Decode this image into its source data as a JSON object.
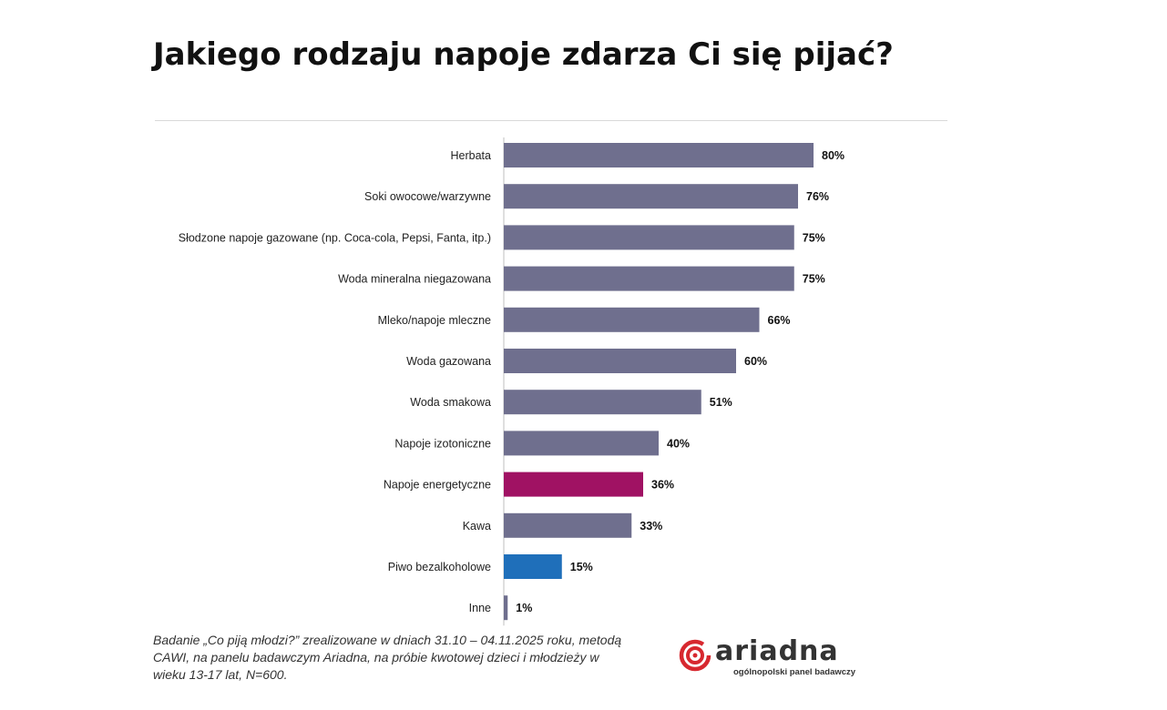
{
  "page": {
    "title": "Jakiego rodzaju napoje zdarza Ci się pijać?",
    "footnote": "Badanie „Co piją młodzi?” zrealizowane w dniach 31.10 – 04.11.2025 roku, metodą CAWI, na panelu badawczym Ariadna, na próbie kwotowej dzieci i młodzieży w wieku 13-17 lat, N=600.",
    "logo": {
      "name": "ariadna",
      "tagline": "ogólnopolski panel badawczy",
      "icon": "ariadna-spiral-icon",
      "color": "#d7282f"
    }
  },
  "chart_data": {
    "type": "bar",
    "orientation": "horizontal",
    "title": "Jakiego rodzaju napoje zdarza Ci się pijać?",
    "categories": [
      "Herbata",
      "Soki owocowe/warzywne",
      "Słodzone napoje gazowane (np. Coca-cola, Pepsi, Fanta, itp.)",
      "Woda mineralna niegazowana",
      "Mleko/napoje mleczne",
      "Woda gazowana",
      "Woda smakowa",
      "Napoje izotoniczne",
      "Napoje energetyczne",
      "Kawa",
      "Piwo bezalkoholowe",
      "Inne"
    ],
    "values": [
      80,
      76,
      75,
      75,
      66,
      60,
      51,
      40,
      36,
      33,
      15,
      1
    ],
    "value_labels": [
      "80%",
      "76%",
      "75%",
      "75%",
      "66%",
      "60%",
      "51%",
      "40%",
      "36%",
      "33%",
      "15%",
      "1%"
    ],
    "colors": [
      "#6f6f8e",
      "#6f6f8e",
      "#6f6f8e",
      "#6f6f8e",
      "#6f6f8e",
      "#6f6f8e",
      "#6f6f8e",
      "#6f6f8e",
      "#a01263",
      "#6f6f8e",
      "#1f6fba",
      "#6f6f8e"
    ],
    "xlim": [
      0,
      80
    ],
    "unit": "%",
    "grid": false,
    "legend": "none"
  }
}
